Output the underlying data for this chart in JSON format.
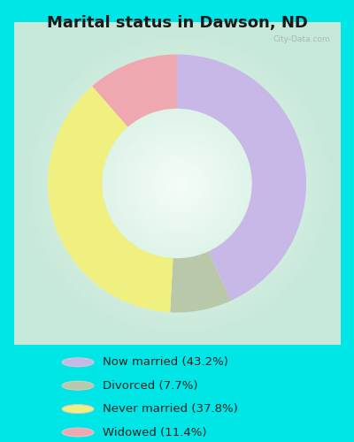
{
  "title": "Marital status in Dawson, ND",
  "values": [
    43.2,
    7.7,
    37.8,
    11.4
  ],
  "colors": [
    "#c8b8e8",
    "#b8c8a8",
    "#f0f080",
    "#f0a8b0"
  ],
  "legend_labels": [
    "Now married (43.2%)",
    "Divorced (7.7%)",
    "Never married (37.8%)",
    "Widowed (11.4%)"
  ],
  "legend_colors": [
    "#c8b8e8",
    "#b8c8a8",
    "#f0f080",
    "#f0a8b0"
  ],
  "bg_cyan": "#00e5e5",
  "bg_chart_center": "#e8f5ee",
  "bg_chart_edge": "#c8ece0",
  "title_fontsize": 13,
  "watermark": "City-Data.com"
}
